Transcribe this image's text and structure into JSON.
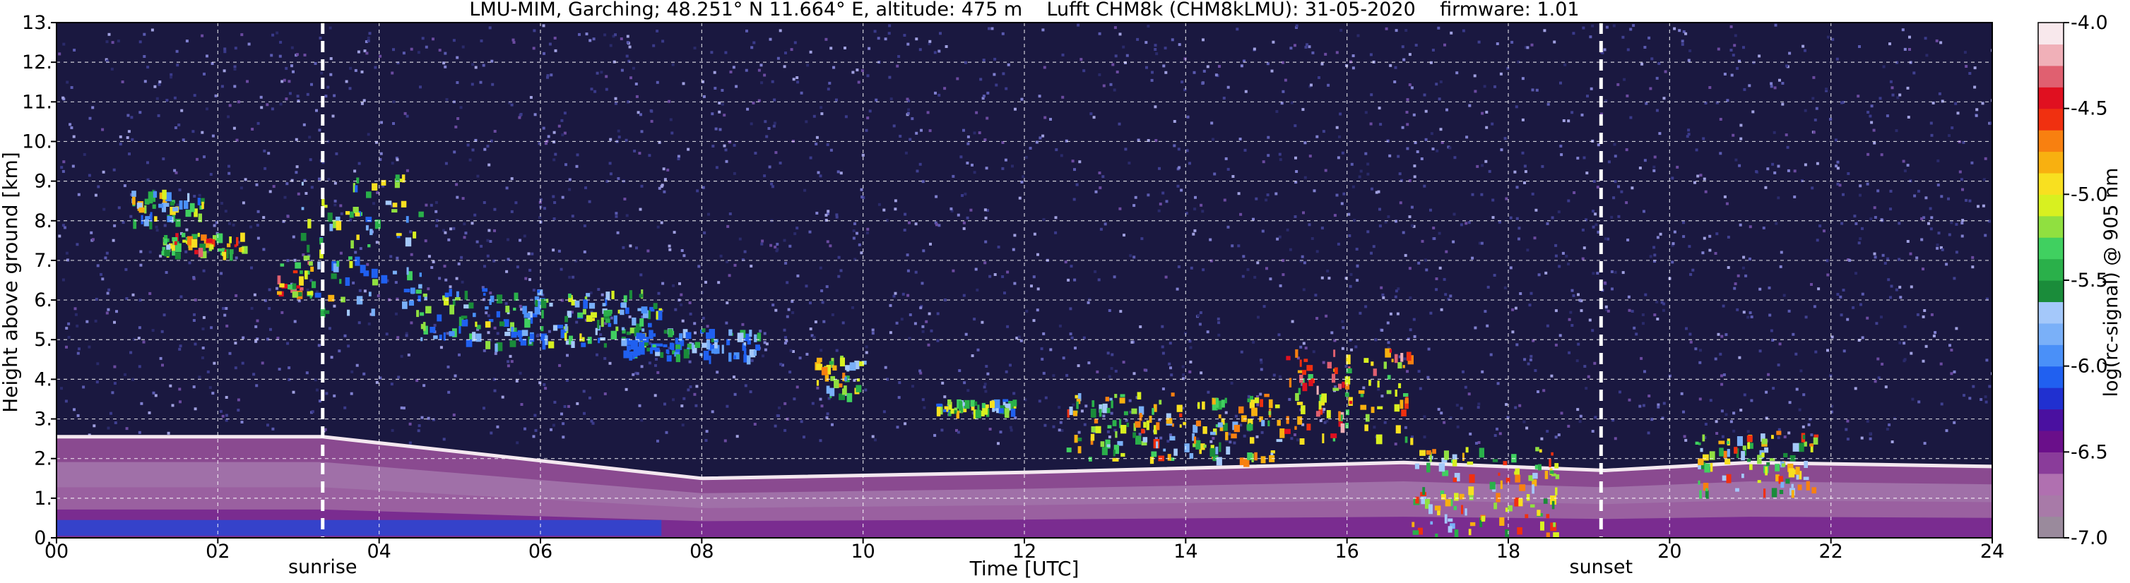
{
  "chart_data": {
    "type": "heatmap",
    "title": "LMU-MIM, Garching; 48.251° N 11.664° E, altitude: 475 m    Lufft CHM8k (CHM8kLMU): 31-05-2020    firmware: 1.01",
    "xlabel": "Time [UTC]",
    "ylabel": "Height above ground [km]",
    "xlim": [
      0,
      24
    ],
    "ylim": [
      0,
      13
    ],
    "x_ticks": [
      "00",
      "02",
      "04",
      "06",
      "08",
      "10",
      "12",
      "14",
      "16",
      "18",
      "20",
      "22",
      "24"
    ],
    "y_ticks": [
      "0.",
      "1.",
      "2.",
      "3.",
      "4.",
      "5.",
      "6.",
      "7.",
      "8.",
      "9.",
      "10.",
      "11.",
      "12.",
      "13."
    ],
    "grid": true,
    "colorbar": {
      "label": "log(rc-signal) @ 905 nm",
      "range": [
        -7.0,
        -4.0
      ],
      "ticks": [
        "-4.0",
        "-4.5",
        "-5.0",
        "-5.5",
        "-6.0",
        "-6.5",
        "-7.0"
      ],
      "palette": [
        "#9a8a9c",
        "#a87aa8",
        "#b070b0",
        "#8a3c9a",
        "#6a0f8a",
        "#4a10a0",
        "#2030d0",
        "#2060f0",
        "#4a90f8",
        "#7ab0f8",
        "#a4c8fa",
        "#1a8c3a",
        "#2ab04a",
        "#40d060",
        "#90e040",
        "#d8f020",
        "#f8e020",
        "#f8b010",
        "#f88010",
        "#f03010",
        "#e01020",
        "#e06070",
        "#f0b0b8",
        "#f8e8ec"
      ]
    },
    "annotations": [
      {
        "text": "sunrise",
        "x": 3.3
      },
      {
        "text": "sunset",
        "x": 19.15
      }
    ],
    "features": {
      "boundary_layer_top_km": [
        {
          "x": 0.0,
          "y": 2.55
        },
        {
          "x": 3.3,
          "y": 2.55
        },
        {
          "x": 8.0,
          "y": 1.5
        },
        {
          "x": 12.0,
          "y": 1.65
        },
        {
          "x": 16.7,
          "y": 1.9
        },
        {
          "x": 19.2,
          "y": 1.7
        },
        {
          "x": 21.0,
          "y": 1.9
        },
        {
          "x": 24.0,
          "y": 1.8
        }
      ],
      "cloud_layers": [
        {
          "t0": 0.9,
          "t1": 1.8,
          "h0": 8.0,
          "h1": 8.8,
          "level": 0.75
        },
        {
          "t0": 1.3,
          "t1": 2.3,
          "h0": 7.2,
          "h1": 7.7,
          "level": 0.9
        },
        {
          "t0": 2.7,
          "t1": 3.2,
          "h0": 6.2,
          "h1": 7.0,
          "level": 0.93
        },
        {
          "t0": 3.0,
          "t1": 4.5,
          "h0": 5.7,
          "h1": 9.2,
          "level": 0.72
        },
        {
          "t0": 4.5,
          "t1": 7.5,
          "h0": 4.9,
          "h1": 6.3,
          "level": 0.68
        },
        {
          "t0": 7.0,
          "t1": 8.7,
          "h0": 4.6,
          "h1": 5.3,
          "level": 0.55
        },
        {
          "t0": 9.4,
          "t1": 10.0,
          "h0": 3.6,
          "h1": 4.6,
          "level": 0.8
        },
        {
          "t0": 10.9,
          "t1": 11.9,
          "h0": 3.2,
          "h1": 3.5,
          "level": 0.75
        },
        {
          "t0": 12.5,
          "t1": 15.2,
          "h0": 2.0,
          "h1": 3.7,
          "level": 0.82
        },
        {
          "t0": 15.2,
          "t1": 16.8,
          "h0": 2.5,
          "h1": 4.8,
          "level": 0.96
        },
        {
          "t0": 16.8,
          "t1": 18.6,
          "h0": 0.1,
          "h1": 2.3,
          "level": 0.85
        },
        {
          "t0": 20.3,
          "t1": 21.8,
          "h0": 1.2,
          "h1": 2.7,
          "level": 0.85
        }
      ]
    }
  }
}
